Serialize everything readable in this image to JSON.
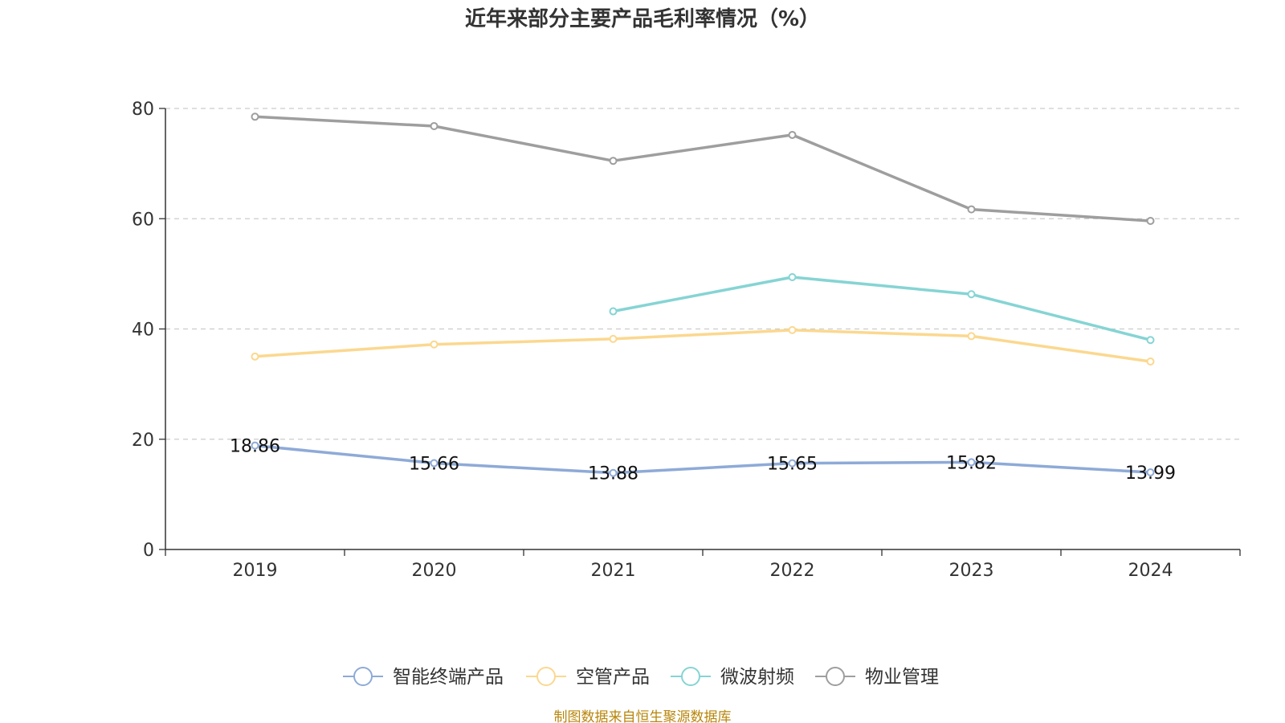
{
  "chart_data": {
    "type": "line",
    "title": "近年来部分主要产品毛利率情况（%）",
    "categories": [
      "2019",
      "2020",
      "2021",
      "2022",
      "2023",
      "2024"
    ],
    "ylim": [
      0,
      80
    ],
    "yticks": [
      0,
      20,
      40,
      60,
      80
    ],
    "grid": "horizontal-dashed",
    "legend_position": "bottom",
    "series": [
      {
        "name": "智能终端产品",
        "color": "#8eaad7",
        "values": [
          18.86,
          15.66,
          13.88,
          15.65,
          15.82,
          13.99
        ],
        "labels": [
          "18.86",
          "15.66",
          "13.88",
          "15.65",
          "15.82",
          "13.99"
        ]
      },
      {
        "name": "空管产品",
        "color": "#fbd88f",
        "values": [
          35.0,
          37.2,
          38.2,
          39.8,
          38.7,
          34.1
        ]
      },
      {
        "name": "微波射频",
        "color": "#86d4d4",
        "values": [
          null,
          null,
          43.2,
          49.4,
          46.3,
          38.0
        ]
      },
      {
        "name": "物业管理",
        "color": "#9e9e9e",
        "values": [
          78.5,
          76.8,
          70.5,
          75.2,
          61.7,
          59.6
        ]
      }
    ]
  },
  "source": "制图数据来自恒生聚源数据库"
}
